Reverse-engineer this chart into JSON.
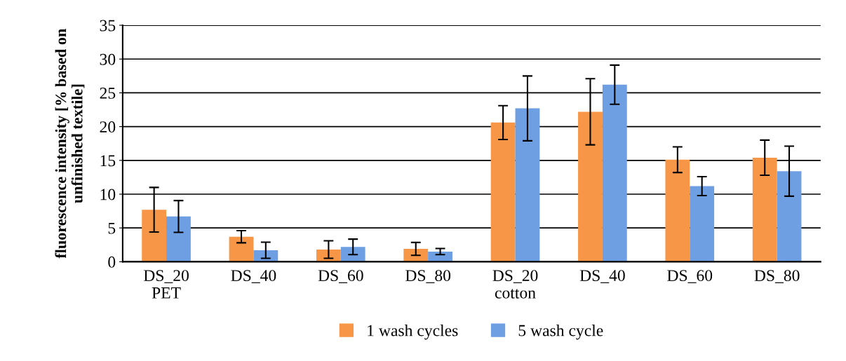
{
  "chart_data": {
    "type": "bar",
    "ylabel": "fluorescence intensity [% based on\nunfinished textile]",
    "categories": [
      "DS_20\nPET",
      "DS_40",
      "DS_60",
      "DS_80",
      "DS_20\ncotton",
      "DS_40",
      "DS_60",
      "DS_80"
    ],
    "series": [
      {
        "name": "1 wash cycles",
        "color": "#f79646",
        "values": [
          7.7,
          3.7,
          1.8,
          1.9,
          20.6,
          22.2,
          15.1,
          15.4
        ],
        "errors": [
          3.3,
          0.9,
          1.3,
          0.95,
          2.5,
          4.9,
          1.9,
          2.6
        ]
      },
      {
        "name": "5 wash cycle",
        "color": "#6e9fe3",
        "values": [
          6.7,
          1.7,
          2.2,
          1.5,
          22.7,
          26.2,
          11.2,
          13.4
        ],
        "errors": [
          2.35,
          1.2,
          1.15,
          0.45,
          4.8,
          2.9,
          1.4,
          3.7
        ]
      }
    ],
    "ylim": [
      0,
      35
    ],
    "yticks": [
      0,
      5,
      10,
      15,
      20,
      25,
      30,
      35
    ],
    "grid": "y",
    "legend": "bottom"
  }
}
